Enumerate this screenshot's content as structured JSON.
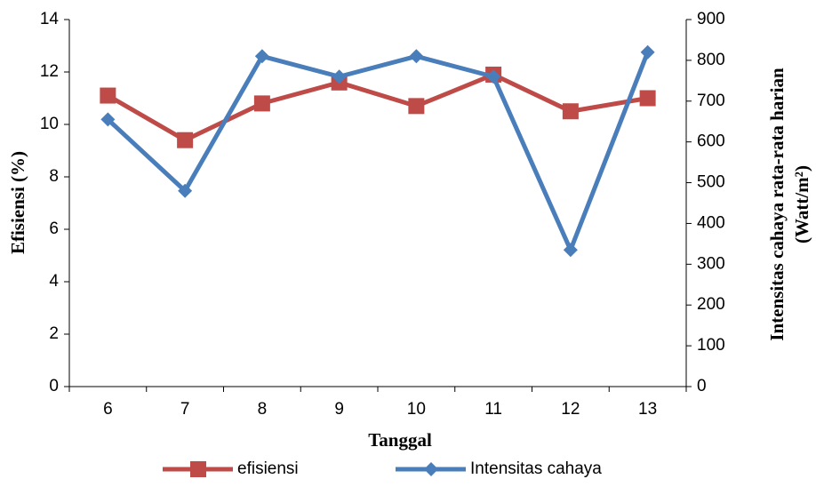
{
  "chart_data": {
    "type": "line",
    "xlabel": "Tanggal",
    "ylabel": "Efisiensi  (%)",
    "y2label": [
      "Intensitas cahaya rata-rata harian",
      "(Watt/m²)"
    ],
    "categories": [
      "6",
      "7",
      "8",
      "9",
      "10",
      "11",
      "12",
      "13"
    ],
    "series": [
      {
        "name": "efisiensi",
        "color": "#be4b48",
        "marker": "square",
        "values": [
          11.1,
          9.4,
          10.8,
          11.6,
          10.7,
          11.9,
          10.5,
          11.0
        ]
      },
      {
        "name": "Intensitas cahaya",
        "color": "#4a7ebb",
        "marker": "diamond",
        "axis": "y2",
        "values": [
          655,
          480,
          810,
          760,
          810,
          760,
          335,
          820
        ]
      }
    ],
    "ylim": [
      0,
      14
    ],
    "yticks": [
      0,
      2,
      4,
      6,
      8,
      10,
      12,
      14
    ],
    "y2lim": [
      0,
      900
    ],
    "y2ticks": [
      0,
      100,
      200,
      300,
      400,
      500,
      600,
      700,
      800,
      900
    ],
    "grid": false,
    "legend": "bottom"
  }
}
